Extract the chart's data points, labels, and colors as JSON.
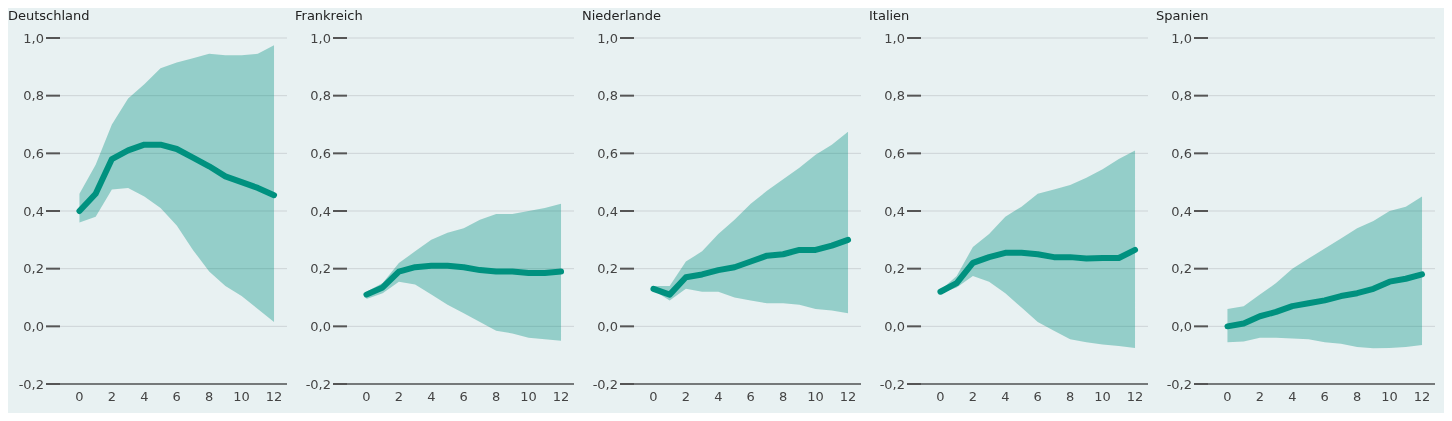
{
  "chart_data": [
    {
      "type": "line",
      "title": "Deutschland",
      "x": [
        0,
        1,
        2,
        3,
        4,
        5,
        6,
        7,
        8,
        9,
        10,
        11,
        12
      ],
      "series": [
        {
          "color": "#00917f",
          "values": [
            0.4,
            0.46,
            0.58,
            0.61,
            0.63,
            0.63,
            0.615,
            0.585,
            0.555,
            0.52,
            0.5,
            0.48,
            0.455
          ],
          "upper": [
            0.46,
            0.56,
            0.7,
            0.79,
            0.84,
            0.895,
            0.915,
            0.93,
            0.945,
            0.94,
            0.94,
            0.945,
            0.975
          ],
          "lower": [
            0.36,
            0.38,
            0.475,
            0.48,
            0.45,
            0.41,
            0.35,
            0.265,
            0.19,
            0.14,
            0.105,
            0.06,
            0.015
          ]
        }
      ],
      "xlim": [
        -1.2,
        12.8
      ],
      "xticks": [
        0,
        2,
        4,
        6,
        8,
        10,
        12
      ],
      "ylim": [
        -0.2,
        1.0
      ],
      "yticks": [
        {
          "value": -0.2,
          "label": "-0,2"
        },
        {
          "value": 0,
          "label": "0,0"
        },
        {
          "value": 0.2,
          "label": "0,2"
        },
        {
          "value": 0.4,
          "label": "0,4"
        },
        {
          "value": 0.6,
          "label": "0,6"
        },
        {
          "value": 0.8,
          "label": "0,8"
        },
        {
          "value": 1.0,
          "label": "1,0"
        }
      ],
      "grid": "y",
      "legend": false,
      "marker": "none",
      "line_style": "solid"
    },
    {
      "type": "line",
      "title": "Frankreich",
      "x": [
        0,
        1,
        2,
        3,
        4,
        5,
        6,
        7,
        8,
        9,
        10,
        11,
        12
      ],
      "series": [
        {
          "color": "#00917f",
          "values": [
            0.11,
            0.135,
            0.19,
            0.205,
            0.21,
            0.21,
            0.205,
            0.195,
            0.19,
            0.19,
            0.185,
            0.185,
            0.19
          ],
          "upper": [
            0.12,
            0.15,
            0.22,
            0.26,
            0.3,
            0.325,
            0.34,
            0.37,
            0.39,
            0.39,
            0.4,
            0.41,
            0.425
          ],
          "lower": [
            0.095,
            0.115,
            0.155,
            0.145,
            0.11,
            0.075,
            0.045,
            0.015,
            -0.015,
            -0.025,
            -0.04,
            -0.045,
            -0.05
          ]
        }
      ],
      "xlim": [
        -1.2,
        12.8
      ],
      "xticks": [
        0,
        2,
        4,
        6,
        8,
        10,
        12
      ],
      "ylim": [
        -0.2,
        1.0
      ],
      "yticks": [
        {
          "value": -0.2,
          "label": "-0,2"
        },
        {
          "value": 0,
          "label": "0,0"
        },
        {
          "value": 0.2,
          "label": "0,2"
        },
        {
          "value": 0.4,
          "label": "0,4"
        },
        {
          "value": 0.6,
          "label": "0,6"
        },
        {
          "value": 0.8,
          "label": "0,8"
        },
        {
          "value": 1.0,
          "label": "1,0"
        }
      ],
      "grid": "y",
      "legend": false,
      "marker": "none",
      "line_style": "solid"
    },
    {
      "type": "line",
      "title": "Niederlande",
      "x": [
        0,
        1,
        2,
        3,
        4,
        5,
        6,
        7,
        8,
        9,
        10,
        11,
        12
      ],
      "series": [
        {
          "color": "#00917f",
          "values": [
            0.13,
            0.11,
            0.17,
            0.18,
            0.195,
            0.205,
            0.225,
            0.245,
            0.25,
            0.265,
            0.265,
            0.28,
            0.3
          ],
          "upper": [
            0.14,
            0.14,
            0.225,
            0.26,
            0.32,
            0.37,
            0.425,
            0.47,
            0.51,
            0.55,
            0.595,
            0.63,
            0.675
          ],
          "lower": [
            0.125,
            0.09,
            0.13,
            0.12,
            0.12,
            0.1,
            0.09,
            0.08,
            0.08,
            0.075,
            0.06,
            0.055,
            0.045
          ]
        }
      ],
      "xlim": [
        -1.2,
        12.8
      ],
      "xticks": [
        0,
        2,
        4,
        6,
        8,
        10,
        12
      ],
      "ylim": [
        -0.2,
        1.0
      ],
      "yticks": [
        {
          "value": -0.2,
          "label": "-0,2"
        },
        {
          "value": 0,
          "label": "0,0"
        },
        {
          "value": 0.2,
          "label": "0,2"
        },
        {
          "value": 0.4,
          "label": "0,4"
        },
        {
          "value": 0.6,
          "label": "0,6"
        },
        {
          "value": 0.8,
          "label": "0,8"
        },
        {
          "value": 1.0,
          "label": "1,0"
        }
      ],
      "grid": "y",
      "legend": false,
      "marker": "none",
      "line_style": "solid"
    },
    {
      "type": "line",
      "title": "Italien",
      "x": [
        0,
        1,
        2,
        3,
        4,
        5,
        6,
        7,
        8,
        9,
        10,
        11,
        12
      ],
      "series": [
        {
          "color": "#00917f",
          "values": [
            0.12,
            0.15,
            0.22,
            0.24,
            0.255,
            0.255,
            0.25,
            0.24,
            0.24,
            0.235,
            0.237,
            0.237,
            0.265
          ],
          "upper": [
            0.125,
            0.175,
            0.275,
            0.32,
            0.38,
            0.415,
            0.46,
            0.475,
            0.49,
            0.515,
            0.545,
            0.58,
            0.61
          ],
          "lower": [
            0.115,
            0.135,
            0.175,
            0.155,
            0.115,
            0.065,
            0.015,
            -0.015,
            -0.045,
            -0.055,
            -0.063,
            -0.068,
            -0.075
          ]
        }
      ],
      "xlim": [
        -1.2,
        12.8
      ],
      "xticks": [
        0,
        2,
        4,
        6,
        8,
        10,
        12
      ],
      "ylim": [
        -0.2,
        1.0
      ],
      "yticks": [
        {
          "value": -0.2,
          "label": "-0,2"
        },
        {
          "value": 0,
          "label": "0,0"
        },
        {
          "value": 0.2,
          "label": "0,2"
        },
        {
          "value": 0.4,
          "label": "0,4"
        },
        {
          "value": 0.6,
          "label": "0,6"
        },
        {
          "value": 0.8,
          "label": "0,8"
        },
        {
          "value": 1.0,
          "label": "1,0"
        }
      ],
      "grid": "y",
      "legend": false,
      "marker": "none",
      "line_style": "solid"
    },
    {
      "type": "line",
      "title": "Spanien",
      "x": [
        0,
        1,
        2,
        3,
        4,
        5,
        6,
        7,
        8,
        9,
        10,
        11,
        12
      ],
      "series": [
        {
          "color": "#00917f",
          "values": [
            0.0,
            0.01,
            0.035,
            0.05,
            0.07,
            0.08,
            0.09,
            0.105,
            0.115,
            0.13,
            0.155,
            0.165,
            0.18
          ],
          "upper": [
            0.06,
            0.07,
            0.11,
            0.15,
            0.2,
            0.235,
            0.27,
            0.305,
            0.34,
            0.365,
            0.4,
            0.415,
            0.45
          ],
          "lower": [
            -0.055,
            -0.053,
            -0.04,
            -0.04,
            -0.042,
            -0.045,
            -0.055,
            -0.06,
            -0.072,
            -0.076,
            -0.075,
            -0.072,
            -0.065
          ]
        }
      ],
      "xlim": [
        -1.2,
        12.8
      ],
      "xticks": [
        0,
        2,
        4,
        6,
        8,
        10,
        12
      ],
      "ylim": [
        -0.2,
        1.0
      ],
      "yticks": [
        {
          "value": -0.2,
          "label": "-0,2"
        },
        {
          "value": 0,
          "label": "0,0"
        },
        {
          "value": 0.2,
          "label": "0,2"
        },
        {
          "value": 0.4,
          "label": "0,4"
        },
        {
          "value": 0.6,
          "label": "0,6"
        },
        {
          "value": 0.8,
          "label": "0,8"
        },
        {
          "value": 1.0,
          "label": "1,0"
        }
      ],
      "grid": "y",
      "legend": false,
      "marker": "none",
      "line_style": "solid"
    }
  ]
}
